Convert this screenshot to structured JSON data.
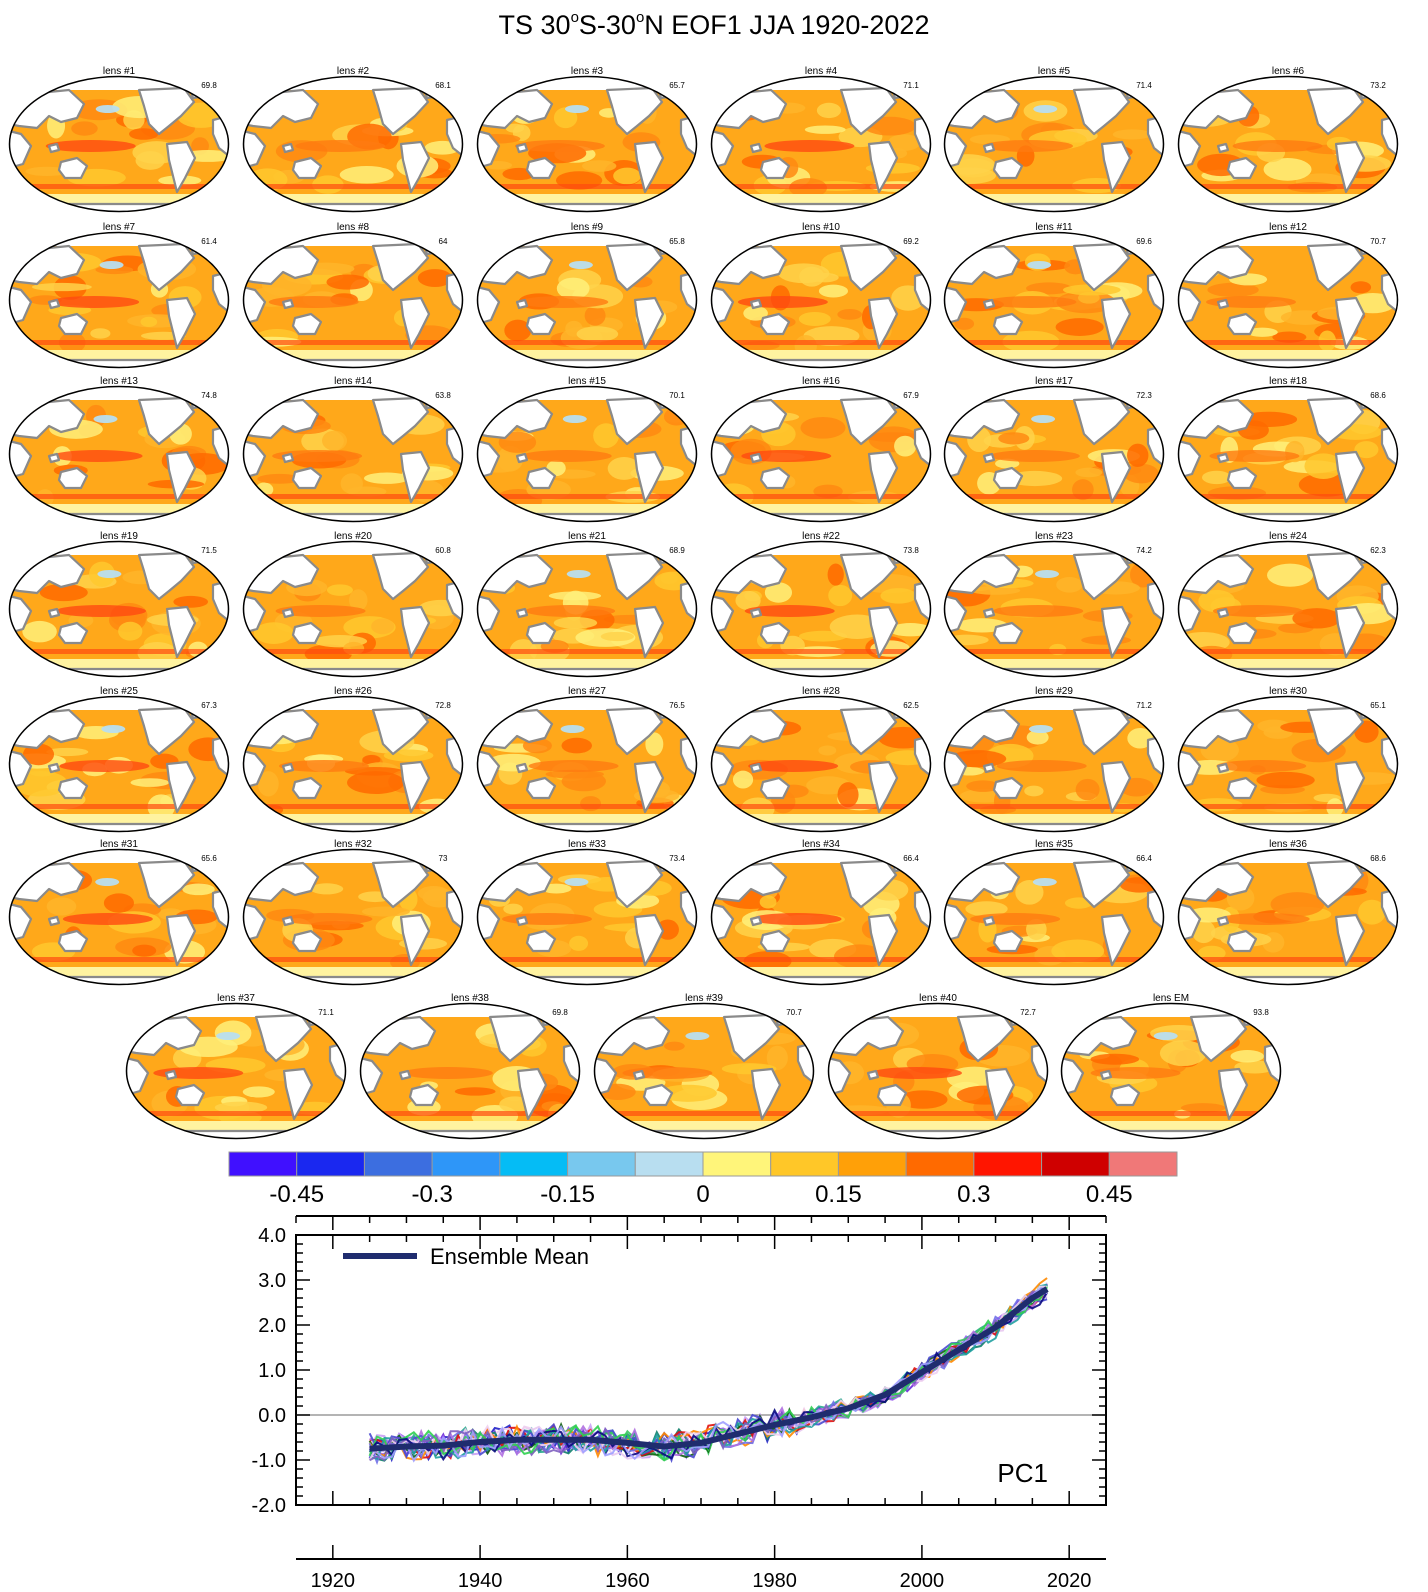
{
  "figure": {
    "title_main_1": "TS 30",
    "title_sup_1": "o",
    "title_main_2": "S-30",
    "title_sup_2": "o",
    "title_main_3": "N EOF1 JJA 1920-2022"
  },
  "panels": [
    {
      "label": "lens #1",
      "pct": "69.8"
    },
    {
      "label": "lens #2",
      "pct": "68.1"
    },
    {
      "label": "lens #3",
      "pct": "65.7"
    },
    {
      "label": "lens #4",
      "pct": "71.1"
    },
    {
      "label": "lens #5",
      "pct": "71.4"
    },
    {
      "label": "lens #6",
      "pct": "73.2"
    },
    {
      "label": "lens #7",
      "pct": "61.4"
    },
    {
      "label": "lens #8",
      "pct": "64"
    },
    {
      "label": "lens #9",
      "pct": "65.8"
    },
    {
      "label": "lens #10",
      "pct": "69.2"
    },
    {
      "label": "lens #11",
      "pct": "69.6"
    },
    {
      "label": "lens #12",
      "pct": "70.7"
    },
    {
      "label": "lens #13",
      "pct": "74.8"
    },
    {
      "label": "lens #14",
      "pct": "63.8"
    },
    {
      "label": "lens #15",
      "pct": "70.1"
    },
    {
      "label": "lens #16",
      "pct": "67.9"
    },
    {
      "label": "lens #17",
      "pct": "72.3"
    },
    {
      "label": "lens #18",
      "pct": "68.6"
    },
    {
      "label": "lens #19",
      "pct": "71.5"
    },
    {
      "label": "lens #20",
      "pct": "60.8"
    },
    {
      "label": "lens #21",
      "pct": "68.9"
    },
    {
      "label": "lens #22",
      "pct": "73.8"
    },
    {
      "label": "lens #23",
      "pct": "74.2"
    },
    {
      "label": "lens #24",
      "pct": "62.3"
    },
    {
      "label": "lens #25",
      "pct": "67.3"
    },
    {
      "label": "lens #26",
      "pct": "72.8"
    },
    {
      "label": "lens #27",
      "pct": "76.5"
    },
    {
      "label": "lens #28",
      "pct": "62.5"
    },
    {
      "label": "lens #29",
      "pct": "71.2"
    },
    {
      "label": "lens #30",
      "pct": "65.1"
    },
    {
      "label": "lens #31",
      "pct": "65.6"
    },
    {
      "label": "lens #32",
      "pct": "73"
    },
    {
      "label": "lens #33",
      "pct": "73.4"
    },
    {
      "label": "lens #34",
      "pct": "66.4"
    },
    {
      "label": "lens #35",
      "pct": "66.4"
    },
    {
      "label": "lens #36",
      "pct": "68.6"
    },
    {
      "label": "lens #37",
      "pct": "71.1"
    },
    {
      "label": "lens #38",
      "pct": "69.8"
    },
    {
      "label": "lens #39",
      "pct": "70.7"
    },
    {
      "label": "lens #40",
      "pct": "72.7"
    },
    {
      "label": "lens EM",
      "pct": "93.8"
    }
  ],
  "colorbar": {
    "colors": [
      "#4010ff",
      "#1a28f0",
      "#3c6ee0",
      "#2e96f8",
      "#05bcf5",
      "#78c8ee",
      "#b8def0",
      "#fff57a",
      "#ffc728",
      "#ffa008",
      "#ff6a00",
      "#ff1500",
      "#cf0000",
      "#f07878"
    ],
    "tick_labels": [
      "-0.45",
      "-0.3",
      "-0.15",
      "0",
      "0.15",
      "0.3",
      "0.45"
    ]
  },
  "chart_data": {
    "type": "line",
    "title": "",
    "annotation": "PC1",
    "xlabel": "",
    "ylabel": "",
    "xlim": [
      1915,
      2025
    ],
    "ylim": [
      -2.0,
      4.0
    ],
    "xticks": [
      "1920",
      "1940",
      "1960",
      "1980",
      "2000",
      "2020"
    ],
    "yticks": [
      "-2.0",
      "-1.0",
      "0.0",
      "1.0",
      "2.0",
      "3.0",
      "4.0"
    ],
    "reference_line_y": 0.0,
    "legend": {
      "position": "top-left",
      "entries": [
        "Ensemble Mean"
      ]
    },
    "mean_series": {
      "name": "Ensemble Mean",
      "color": "#1f2c6e",
      "x": [
        1925,
        1930,
        1935,
        1940,
        1945,
        1950,
        1955,
        1960,
        1965,
        1970,
        1975,
        1980,
        1985,
        1990,
        1995,
        2000,
        2005,
        2010,
        2015,
        2017
      ],
      "values": [
        -0.75,
        -0.7,
        -0.68,
        -0.6,
        -0.55,
        -0.55,
        -0.55,
        -0.62,
        -0.7,
        -0.62,
        -0.42,
        -0.22,
        -0.05,
        0.15,
        0.45,
        0.95,
        1.45,
        1.95,
        2.6,
        2.8
      ]
    },
    "members_note_colors": [
      "#2020c8",
      "#6a2ad8",
      "#9b5ff0",
      "#c9a0f5",
      "#e8c8f0",
      "#11806a",
      "#2aa88e",
      "#3cc860",
      "#106010",
      "#e01010",
      "#ff8800",
      "#7070e8",
      "#b070e0",
      "#4a4ad0",
      "#20a0a0",
      "#f0d0f0",
      "#8060c0",
      "#30d050",
      "#0a0a80",
      "#a0a0ff"
    ]
  }
}
